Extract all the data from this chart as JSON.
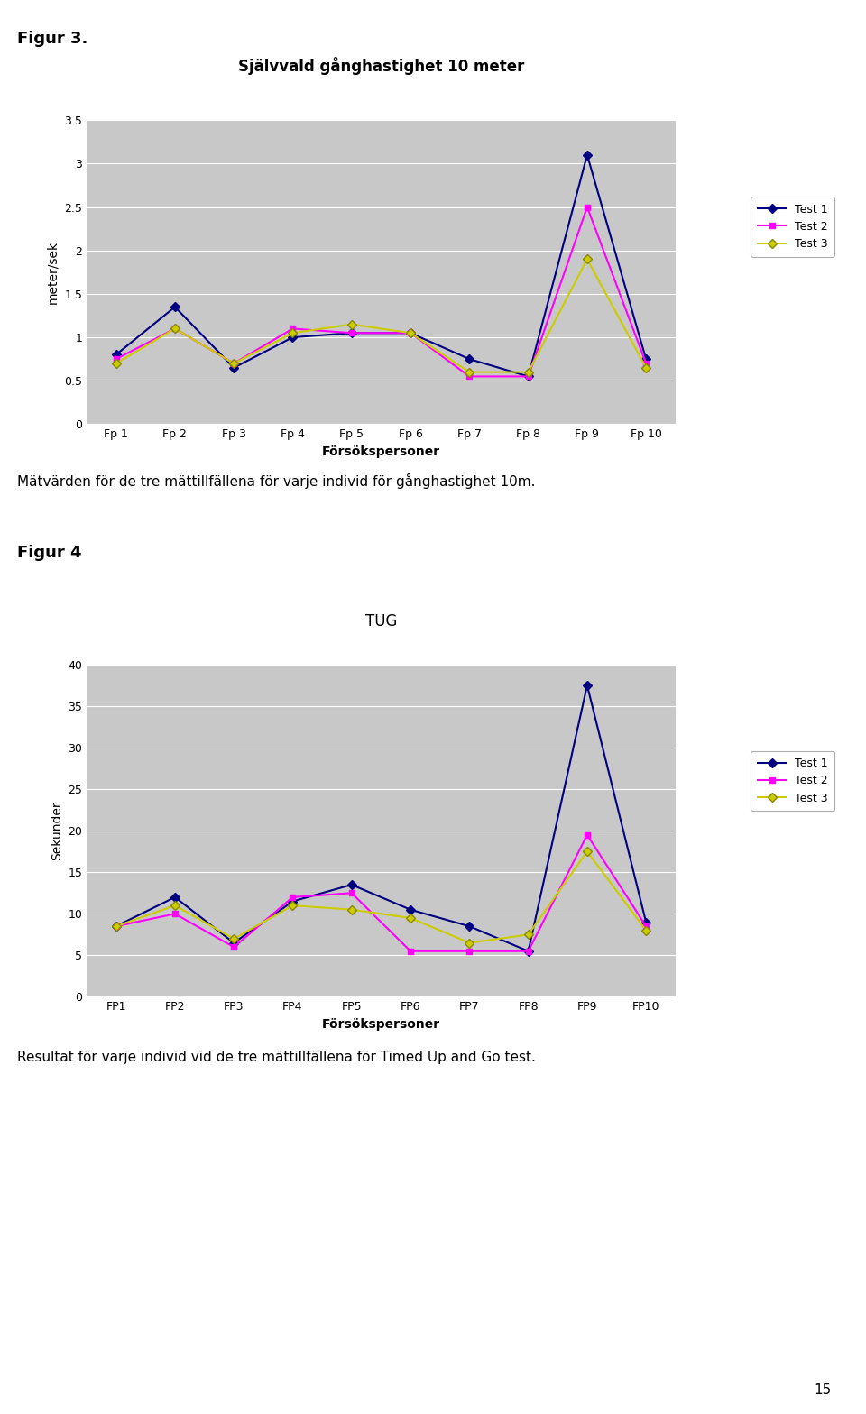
{
  "fig3_title": "Självvald gånghastighet 10 meter",
  "fig3_xlabel": "Försökspersoner",
  "fig3_ylabel": "meter/sek",
  "fig3_categories": [
    "Fp 1",
    "Fp 2",
    "Fp 3",
    "Fp 4",
    "Fp 5",
    "Fp 6",
    "Fp 7",
    "Fp 8",
    "Fp 9",
    "Fp 10"
  ],
  "fig3_test1": [
    0.8,
    1.35,
    0.65,
    1.0,
    1.05,
    1.05,
    0.75,
    0.55,
    3.1,
    0.75
  ],
  "fig3_test2": [
    0.75,
    1.1,
    0.7,
    1.1,
    1.05,
    1.05,
    0.55,
    0.55,
    2.5,
    0.7
  ],
  "fig3_test3": [
    0.7,
    1.1,
    0.7,
    1.05,
    1.15,
    1.05,
    0.6,
    0.6,
    1.9,
    0.65
  ],
  "fig3_ylim": [
    0,
    3.5
  ],
  "fig3_yticks": [
    0,
    0.5,
    1.0,
    1.5,
    2.0,
    2.5,
    3.0,
    3.5
  ],
  "fig4_title": "TUG",
  "fig4_xlabel": "Försökspersoner",
  "fig4_ylabel": "Sekunder",
  "fig4_categories": [
    "FP1",
    "FP2",
    "FP3",
    "FP4",
    "FP5",
    "FP6",
    "FP7",
    "FP8",
    "FP9",
    "FP10"
  ],
  "fig4_test1": [
    8.5,
    12.0,
    6.5,
    11.5,
    13.5,
    10.5,
    8.5,
    5.5,
    37.5,
    9.0
  ],
  "fig4_test2": [
    8.5,
    10.0,
    6.0,
    12.0,
    12.5,
    5.5,
    5.5,
    5.5,
    19.5,
    8.5
  ],
  "fig4_test3": [
    8.5,
    11.0,
    7.0,
    11.0,
    10.5,
    9.5,
    6.5,
    7.5,
    17.5,
    8.0
  ],
  "fig4_ylim": [
    0,
    40
  ],
  "fig4_yticks": [
    0,
    5,
    10,
    15,
    20,
    25,
    30,
    35,
    40
  ],
  "color_test1": "#000080",
  "color_test2": "#FF00FF",
  "color_test3": "#CCCC00",
  "color_test3_edge": "#888800",
  "bg_color": "#C8C8C8",
  "fig3_figtext": "Mätvärden för de tre mättillfällena för varje individ för gånghastighet 10m.",
  "fig4_figtext": "Resultat för varje individ vid de tre mättillfällena för Timed Up and Go test.",
  "page_number": "15",
  "fig3_label": "Figur 3.",
  "fig4_label": "Figur 4"
}
